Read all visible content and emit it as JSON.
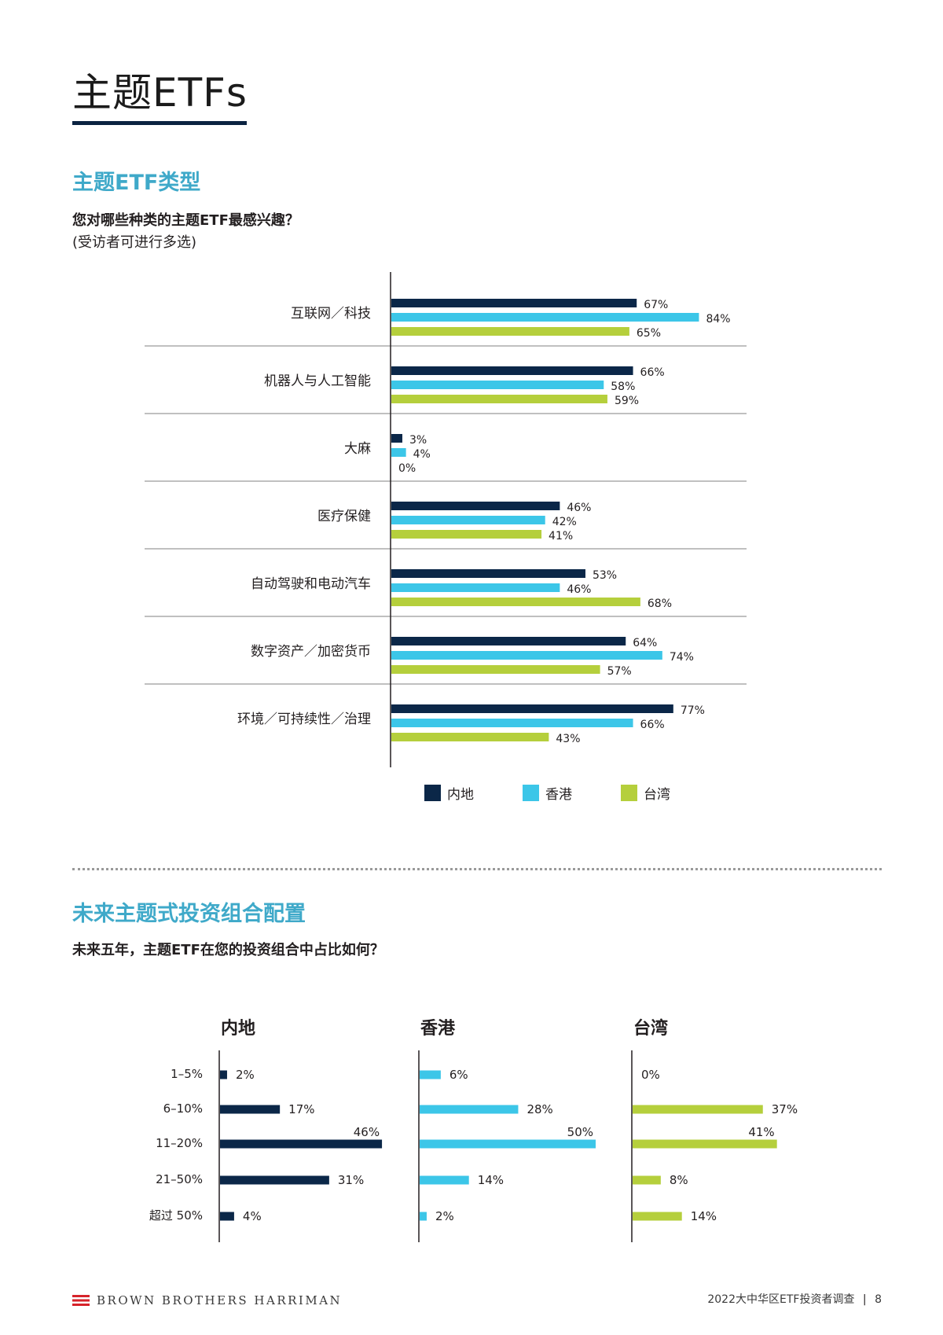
{
  "page": {
    "title": "主题ETFs",
    "colors": {
      "mainland": "#0b2748",
      "hongkong": "#3cc6e8",
      "taiwan": "#b5cf3c",
      "accent": "#3fa9c9"
    }
  },
  "section1": {
    "heading": "主题ETF类型",
    "question": "您对哪些种类的主题ETF最感兴趣？",
    "note": "(受访者可进行多选)",
    "chart_data": {
      "type": "bar",
      "orientation": "horizontal",
      "categories": [
        "互联网／科技",
        "机器人与人工智能",
        "大麻",
        "医疗保健",
        "自动驾驶和电动汽车",
        "数字资产／加密货币",
        "环境／可持续性／治理"
      ],
      "series": [
        {
          "name": "内地",
          "color": "#0b2748",
          "values": [
            67,
            66,
            3,
            46,
            53,
            64,
            77
          ],
          "labels": [
            "67%",
            "66%",
            "3%",
            "46%",
            "53%",
            "64%",
            "77%"
          ]
        },
        {
          "name": "香港",
          "color": "#3cc6e8",
          "values": [
            84,
            58,
            4,
            42,
            46,
            74,
            66
          ],
          "labels": [
            "84%",
            "58%",
            "4%",
            "42%",
            "46%",
            "74%",
            "66%"
          ]
        },
        {
          "name": "台湾",
          "color": "#b5cf3c",
          "values": [
            65,
            59,
            0,
            41,
            68,
            57,
            43
          ],
          "labels": [
            "65%",
            "59%",
            "0%",
            "41%",
            "68%",
            "57%",
            "43%"
          ]
        }
      ],
      "legend": [
        "内地",
        "香港",
        "台湾"
      ],
      "legend_position": "bottom"
    }
  },
  "section2": {
    "heading": "未来主题式投资组合配置",
    "question": "未来五年，主题ETF在您的投资组合中占比如何？",
    "chart_data": [
      {
        "type": "bar",
        "orientation": "horizontal",
        "title": "内地",
        "color": "#0b2748",
        "categories": [
          "1–5%",
          "6–10%",
          "11–20%",
          "21–50%",
          "超过 50%"
        ],
        "values": [
          2,
          17,
          46,
          31,
          4
        ],
        "labels": [
          "2%",
          "17%",
          "46%",
          "31%",
          "4%"
        ]
      },
      {
        "type": "bar",
        "orientation": "horizontal",
        "title": "香港",
        "color": "#3cc6e8",
        "categories": [
          "1–5%",
          "6–10%",
          "11–20%",
          "21–50%",
          "超过 50%"
        ],
        "values": [
          6,
          28,
          50,
          14,
          2
        ],
        "labels": [
          "6%",
          "28%",
          "50%",
          "14%",
          "2%"
        ]
      },
      {
        "type": "bar",
        "orientation": "horizontal",
        "title": "台湾",
        "color": "#b5cf3c",
        "categories": [
          "1–5%",
          "6–10%",
          "11–20%",
          "21–50%",
          "超过 50%"
        ],
        "values": [
          0,
          37,
          41,
          8,
          14
        ],
        "labels": [
          "0%",
          "37%",
          "41%",
          "8%",
          "14%"
        ]
      }
    ]
  },
  "footer": {
    "brand": "BROWN BROTHERS HARRIMAN",
    "report": "2022大中华区ETF投资者调查",
    "page_number": "8"
  }
}
